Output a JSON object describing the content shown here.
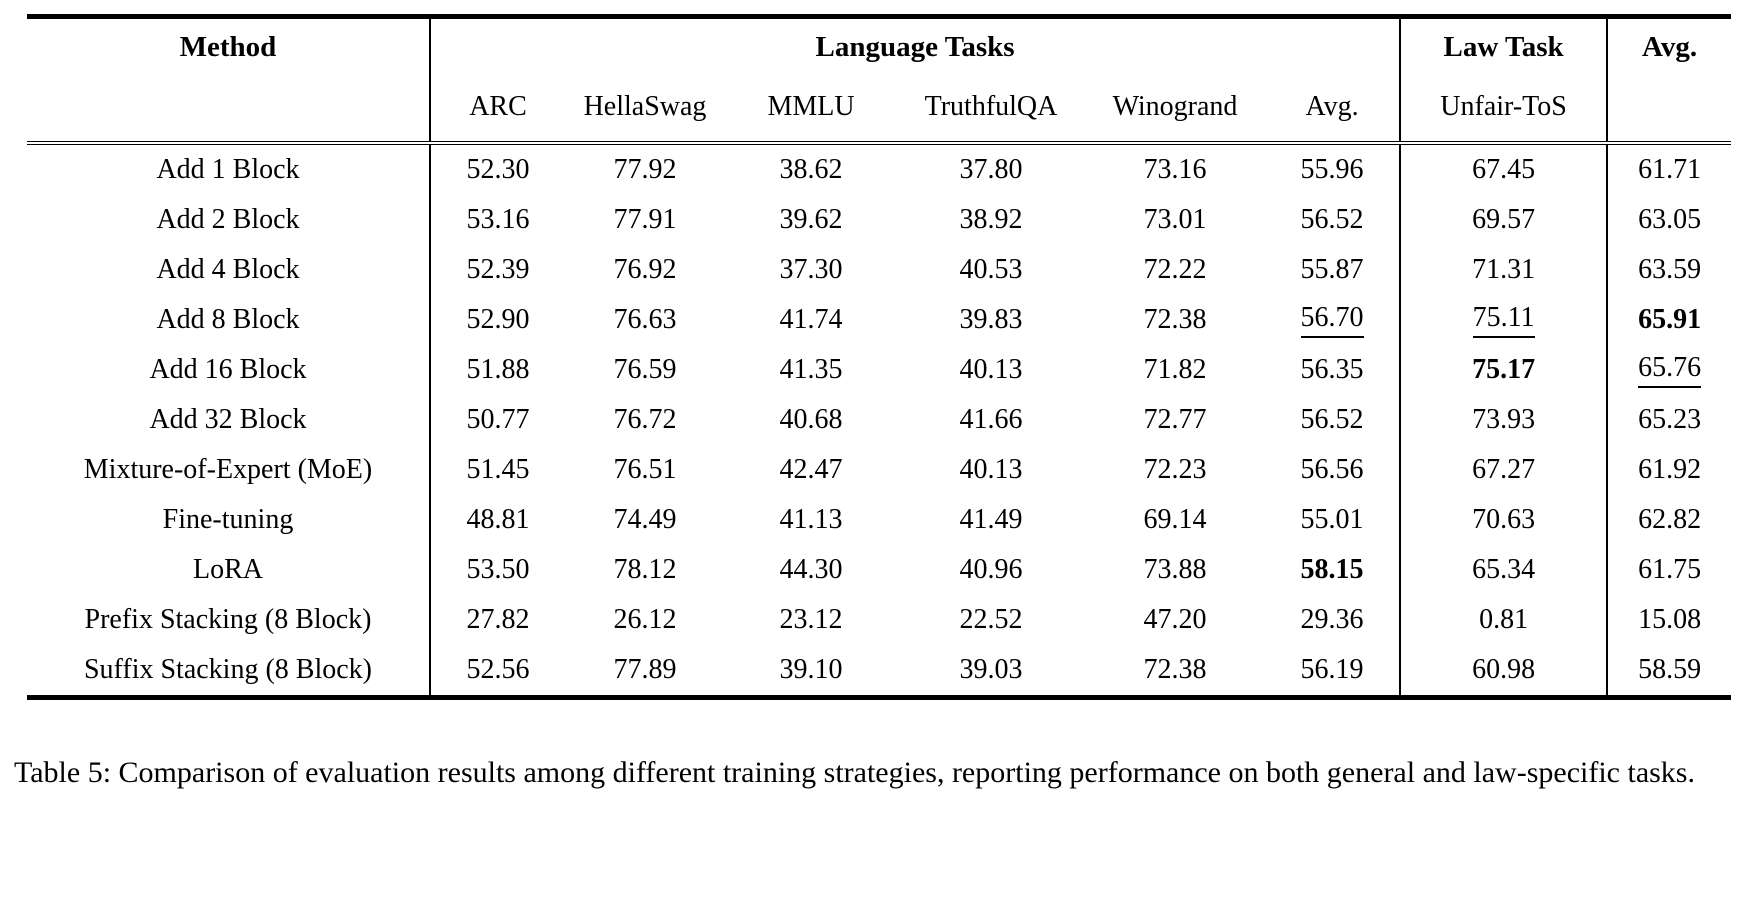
{
  "page": {
    "background_color": "#ffffff",
    "text_color": "#000000"
  },
  "table": {
    "header": {
      "method": "Method",
      "language_group": "Language Tasks",
      "law_group": "Law Task",
      "overall_avg": "Avg.",
      "language_columns": [
        "ARC",
        "HellaSwag",
        "MMLU",
        "TruthfulQA",
        "Winogrand",
        "Avg."
      ],
      "law_column": "Unfair-ToS"
    },
    "rows": [
      {
        "method": "Add 1 Block",
        "cells": [
          {
            "v": "52.30"
          },
          {
            "v": "77.92"
          },
          {
            "v": "38.62"
          },
          {
            "v": "37.80"
          },
          {
            "v": "73.16"
          },
          {
            "v": "55.96"
          },
          {
            "v": "67.45"
          },
          {
            "v": "61.71"
          }
        ]
      },
      {
        "method": "Add 2 Block",
        "cells": [
          {
            "v": "53.16"
          },
          {
            "v": "77.91"
          },
          {
            "v": "39.62"
          },
          {
            "v": "38.92"
          },
          {
            "v": "73.01"
          },
          {
            "v": "56.52"
          },
          {
            "v": "69.57"
          },
          {
            "v": "63.05"
          }
        ]
      },
      {
        "method": "Add 4 Block",
        "cells": [
          {
            "v": "52.39"
          },
          {
            "v": "76.92"
          },
          {
            "v": "37.30"
          },
          {
            "v": "40.53"
          },
          {
            "v": "72.22"
          },
          {
            "v": "55.87"
          },
          {
            "v": "71.31"
          },
          {
            "v": "63.59"
          }
        ]
      },
      {
        "method": "Add 8 Block",
        "cells": [
          {
            "v": "52.90"
          },
          {
            "v": "76.63"
          },
          {
            "v": "41.74"
          },
          {
            "v": "39.83"
          },
          {
            "v": "72.38"
          },
          {
            "v": "56.70",
            "s": "underline"
          },
          {
            "v": "75.11",
            "s": "underline"
          },
          {
            "v": "65.91",
            "s": "bold"
          }
        ]
      },
      {
        "method": "Add 16 Block",
        "cells": [
          {
            "v": "51.88"
          },
          {
            "v": "76.59"
          },
          {
            "v": "41.35"
          },
          {
            "v": "40.13"
          },
          {
            "v": "71.82"
          },
          {
            "v": "56.35"
          },
          {
            "v": "75.17",
            "s": "bold"
          },
          {
            "v": "65.76",
            "s": "underline"
          }
        ]
      },
      {
        "method": "Add 32 Block",
        "cells": [
          {
            "v": "50.77"
          },
          {
            "v": "76.72"
          },
          {
            "v": "40.68"
          },
          {
            "v": "41.66"
          },
          {
            "v": "72.77"
          },
          {
            "v": "56.52"
          },
          {
            "v": "73.93"
          },
          {
            "v": "65.23"
          }
        ]
      },
      {
        "method": "Mixture-of-Expert (MoE)",
        "cells": [
          {
            "v": "51.45"
          },
          {
            "v": "76.51"
          },
          {
            "v": "42.47"
          },
          {
            "v": "40.13"
          },
          {
            "v": "72.23"
          },
          {
            "v": "56.56"
          },
          {
            "v": "67.27"
          },
          {
            "v": "61.92"
          }
        ]
      },
      {
        "method": "Fine-tuning",
        "cells": [
          {
            "v": "48.81"
          },
          {
            "v": "74.49"
          },
          {
            "v": "41.13"
          },
          {
            "v": "41.49"
          },
          {
            "v": "69.14"
          },
          {
            "v": "55.01"
          },
          {
            "v": "70.63"
          },
          {
            "v": "62.82"
          }
        ]
      },
      {
        "method": "LoRA",
        "cells": [
          {
            "v": "53.50"
          },
          {
            "v": "78.12"
          },
          {
            "v": "44.30"
          },
          {
            "v": "40.96"
          },
          {
            "v": "73.88"
          },
          {
            "v": "58.15",
            "s": "bold"
          },
          {
            "v": "65.34"
          },
          {
            "v": "61.75"
          }
        ]
      },
      {
        "method": "Prefix Stacking (8 Block)",
        "cells": [
          {
            "v": "27.82"
          },
          {
            "v": "26.12"
          },
          {
            "v": "23.12"
          },
          {
            "v": "22.52"
          },
          {
            "v": "47.20"
          },
          {
            "v": "29.36"
          },
          {
            "v": "0.81"
          },
          {
            "v": "15.08"
          }
        ]
      },
      {
        "method": "Suffix Stacking (8 Block)",
        "cells": [
          {
            "v": "52.56"
          },
          {
            "v": "77.89"
          },
          {
            "v": "39.10"
          },
          {
            "v": "39.03"
          },
          {
            "v": "72.38"
          },
          {
            "v": "56.19"
          },
          {
            "v": "60.98"
          },
          {
            "v": "58.59"
          }
        ]
      }
    ]
  },
  "caption": "Table 5: Comparison of evaluation results among different training strategies, reporting performance on both general and law-specific tasks."
}
